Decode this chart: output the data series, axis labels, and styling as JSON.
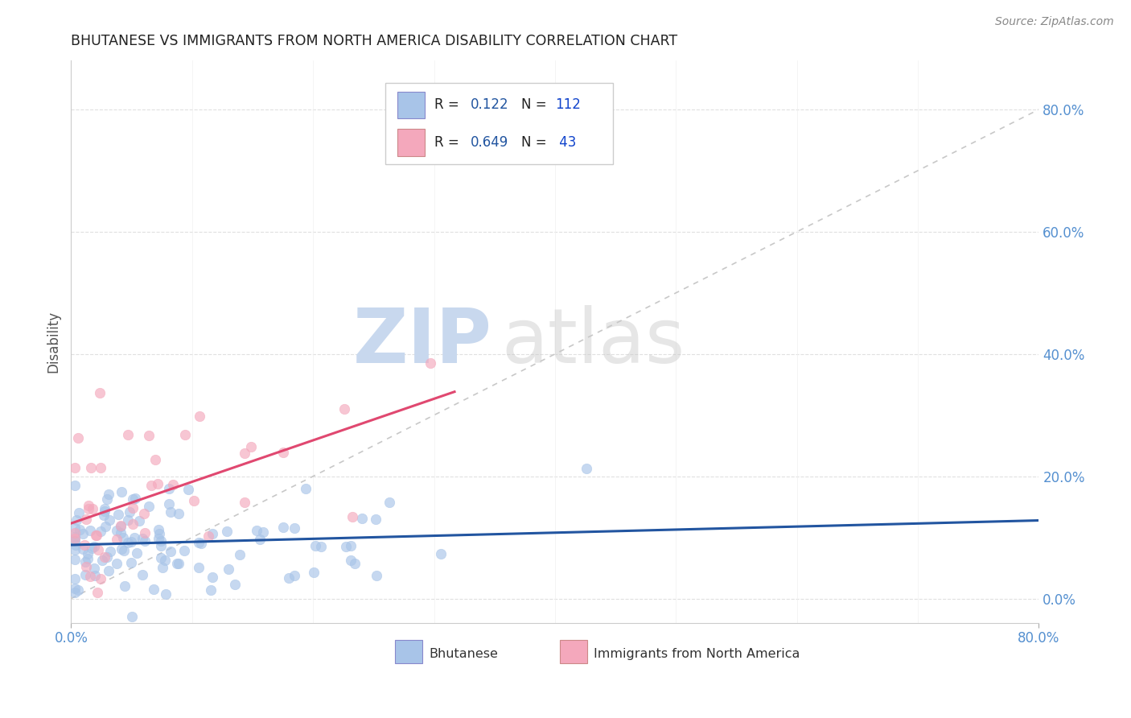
{
  "title": "BHUTANESE VS IMMIGRANTS FROM NORTH AMERICA DISABILITY CORRELATION CHART",
  "source": "Source: ZipAtlas.com",
  "ylabel": "Disability",
  "xlim": [
    0.0,
    0.8
  ],
  "ylim": [
    -0.04,
    0.88
  ],
  "bhutanese_R": 0.122,
  "bhutanese_N": 112,
  "immigrants_R": 0.649,
  "immigrants_N": 43,
  "bhutanese_color": "#a8c4e8",
  "immigrants_color": "#f4a8bc",
  "bhutanese_line_color": "#2255a0",
  "immigrants_line_color": "#e04870",
  "diagonal_line_color": "#c8c8c8",
  "background_color": "#ffffff",
  "watermark_zip_color": "#c8d8ee",
  "watermark_atlas_color": "#c8c8c8",
  "grid_color": "#e0e0e0",
  "tick_label_color": "#5590d0",
  "legend_R_color": "#2255a0",
  "legend_N_color": "#1144cc",
  "legend_text_color": "#222222",
  "title_color": "#222222",
  "source_color": "#888888",
  "ylabel_color": "#555555",
  "ytick_values": [
    0.0,
    0.2,
    0.4,
    0.6,
    0.8
  ],
  "xtick_only_endpoints": true
}
